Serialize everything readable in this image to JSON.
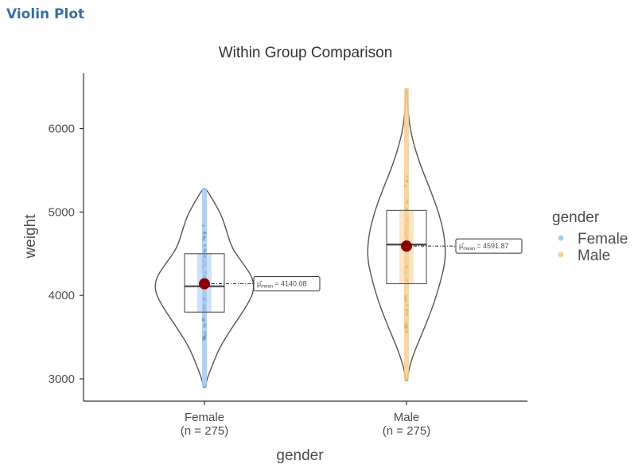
{
  "page": {
    "title": "Violin Plot"
  },
  "chart_data": {
    "type": "violin",
    "title": "Within Group Comparison",
    "xlabel": "gender",
    "ylabel": "weight",
    "ylim": [
      2750,
      6700
    ],
    "yticks": [
      3000,
      4000,
      5000,
      6000
    ],
    "grid": false,
    "legend": {
      "title": "gender",
      "placement": "right",
      "entries": [
        {
          "name": "Female",
          "color": "#a6c8f0"
        },
        {
          "name": "Male",
          "color": "#f5cf97"
        }
      ]
    },
    "groups": [
      {
        "name": "Female",
        "tick_label": "Female",
        "n_label": "(n = 275)",
        "color": "#a6c8f0",
        "dot_color": "#6f93c2",
        "min": 2900,
        "max": 5280,
        "q1": 3800,
        "median": 4110,
        "q3": 4500,
        "mean": 4140.08,
        "mean_label": "= 4140.08"
      },
      {
        "name": "Male",
        "tick_label": "Male",
        "n_label": "(n = 275)",
        "color": "#f5cf97",
        "dot_color": "#d8ae6a",
        "min": 2980,
        "max": 6480,
        "q1": 4140,
        "median": 4610,
        "q3": 5020,
        "mean": 4591.87,
        "mean_label": "= 4591.87"
      }
    ],
    "mean_marker_color": "#8b0000",
    "mean_symbol": "μ̂",
    "mean_subscript": "mean"
  }
}
